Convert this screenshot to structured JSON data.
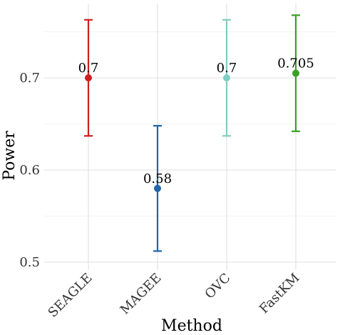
{
  "chart_data": {
    "type": "scatter",
    "title": "",
    "xlabel": "Method",
    "ylabel": "Power",
    "categories": [
      "SEAGLE",
      "MAGEE",
      "OVC",
      "FastKM"
    ],
    "values": [
      0.7,
      0.58,
      0.7,
      0.705
    ],
    "lower": [
      0.637,
      0.512,
      0.637,
      0.642
    ],
    "upper": [
      0.763,
      0.648,
      0.763,
      0.768
    ],
    "data_labels": [
      "0.7",
      "0.58",
      "0.7",
      "0.705"
    ],
    "ylim": [
      0.5,
      0.78
    ],
    "yticks": [
      0.5,
      0.6,
      0.7
    ],
    "ytick_labels": [
      "0.5",
      "0.6",
      "0.7"
    ],
    "colors": [
      "#cc1f1f",
      "#2066aa",
      "#7fcdc2",
      "#3aa024"
    ],
    "grid": true,
    "legend": "none"
  }
}
